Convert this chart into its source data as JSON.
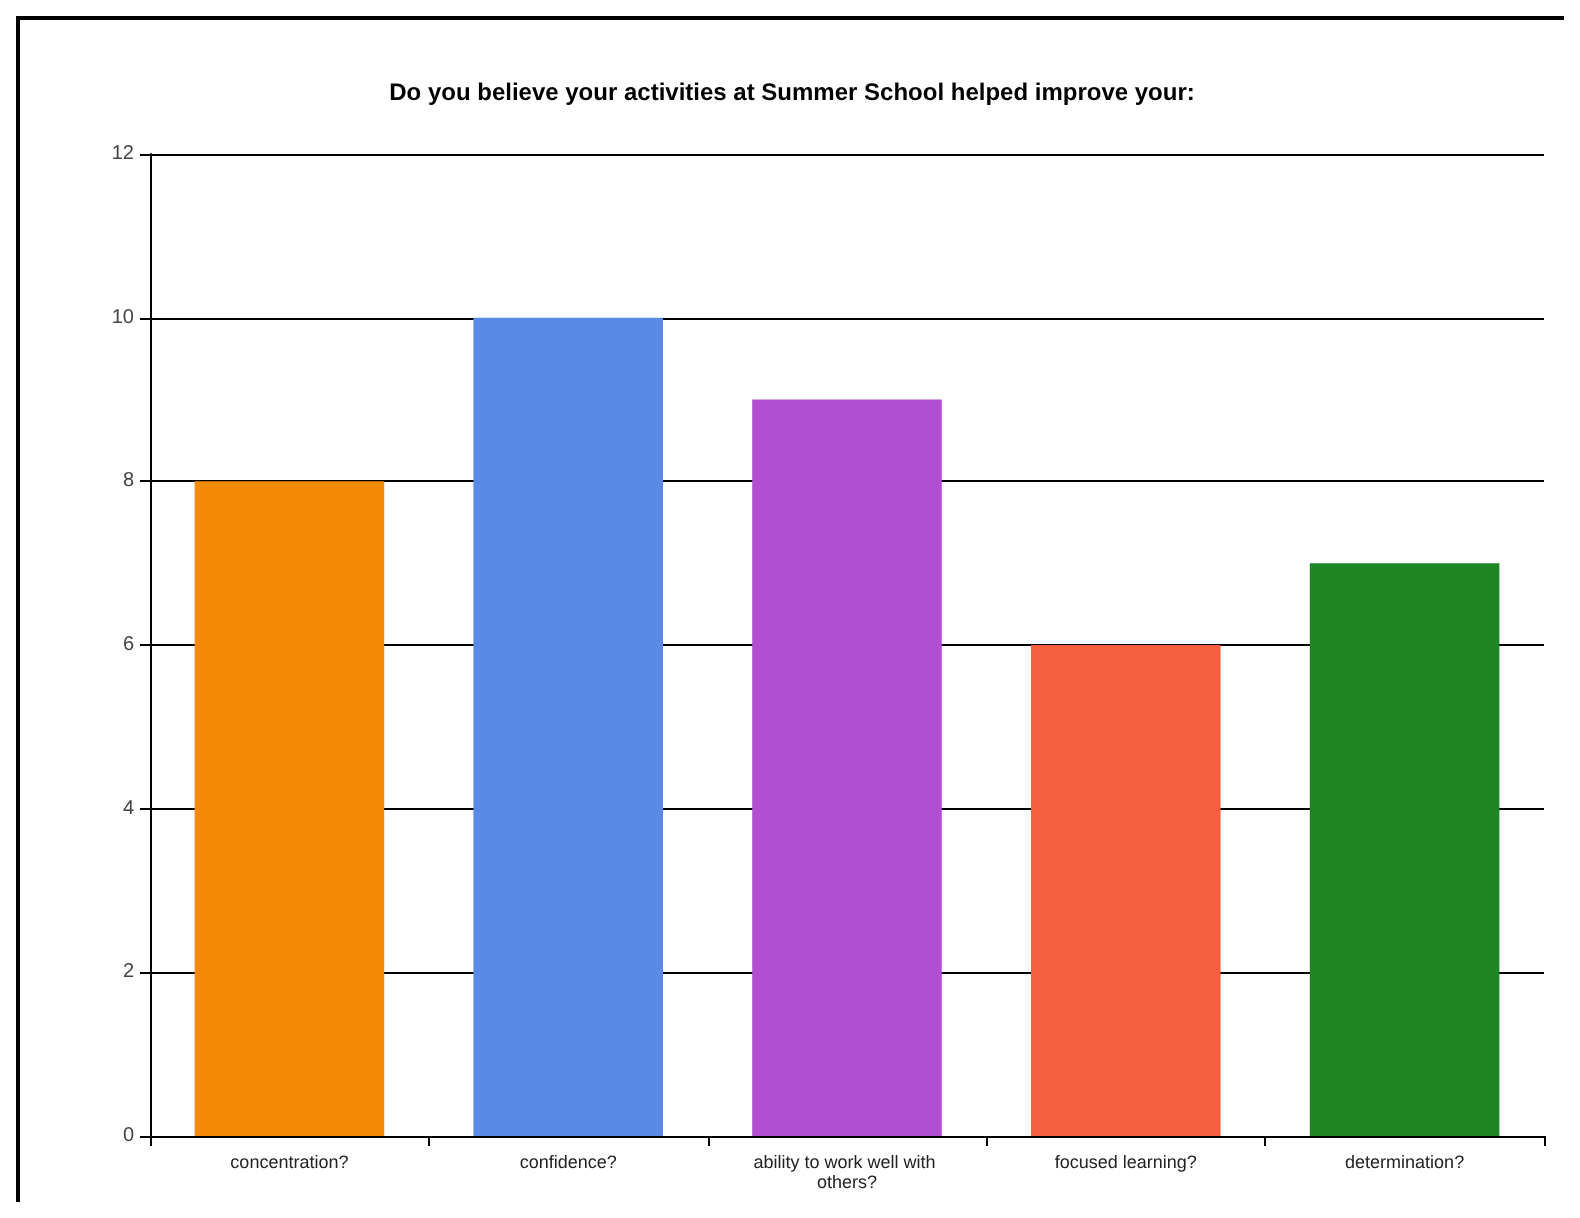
{
  "chart_data": {
    "type": "bar",
    "title": "Do you believe your activities at Summer School helped improve your:",
    "categories": [
      "concentration?",
      "confidence?",
      "ability to work well with others?",
      "focused learning?",
      "determination?"
    ],
    "values": [
      8,
      10,
      9,
      6,
      7
    ],
    "colors": [
      "#f28a05",
      "#5b8ae6",
      "#b04fd0",
      "#f4603f",
      "#1f8423"
    ],
    "ylim": [
      0,
      12
    ],
    "yticks": [
      0,
      2,
      4,
      6,
      8,
      10,
      12
    ],
    "grid": "y"
  }
}
